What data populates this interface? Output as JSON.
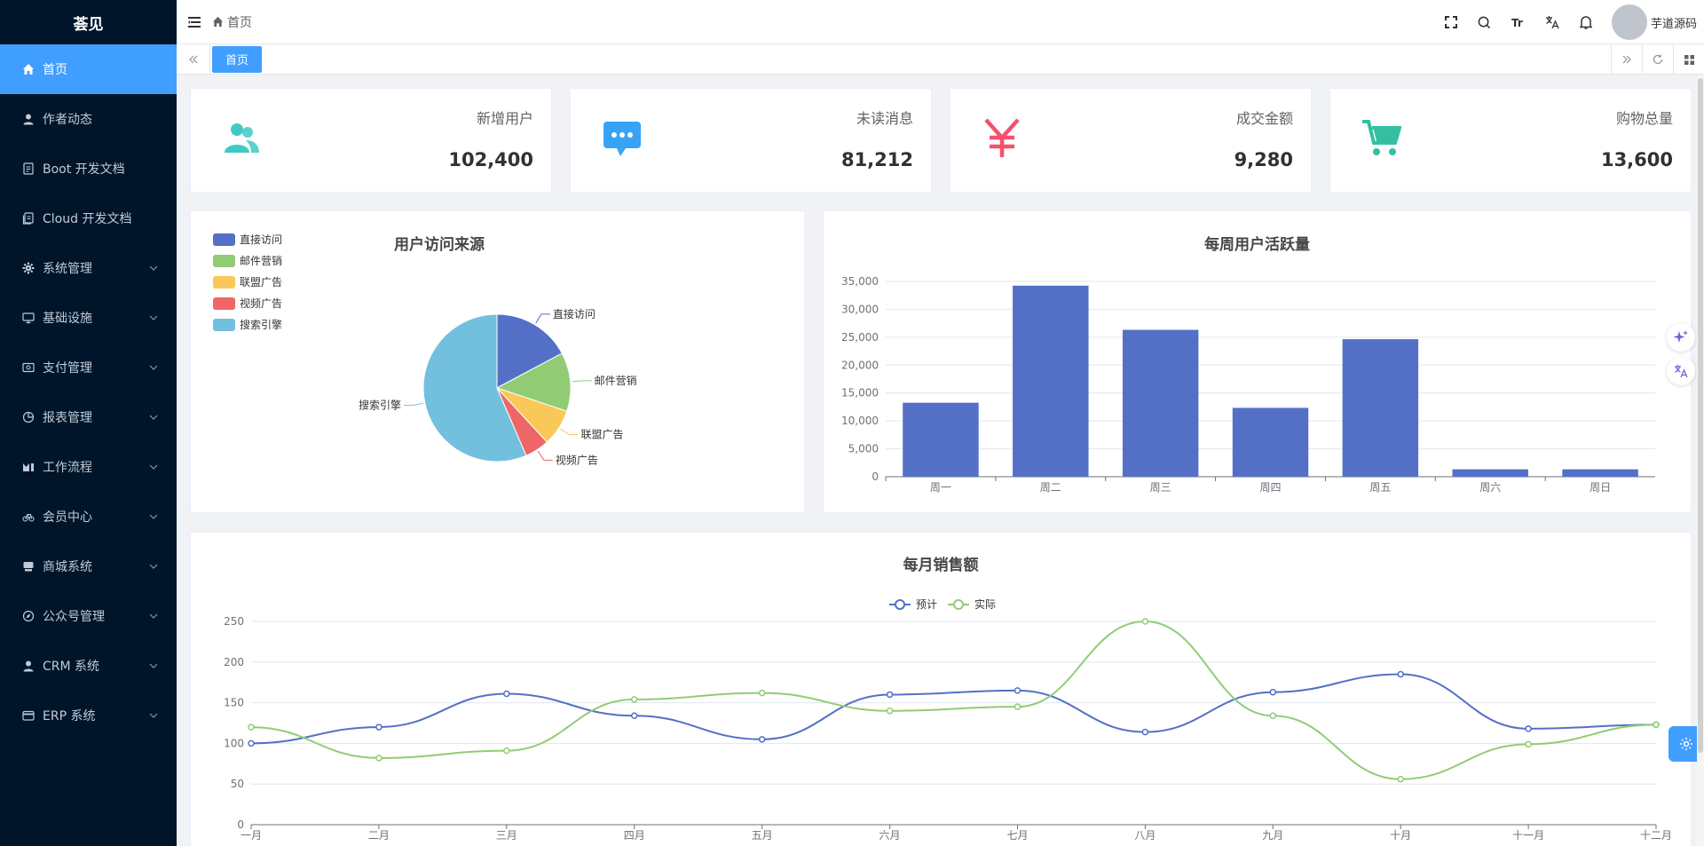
{
  "app": {
    "title": "荟见"
  },
  "sidebar": {
    "items": [
      {
        "label": "首页",
        "icon": "home-icon",
        "active": true
      },
      {
        "label": "作者动态",
        "icon": "user-icon"
      },
      {
        "label": "Boot 开发文档",
        "icon": "document-icon"
      },
      {
        "label": "Cloud 开发文档",
        "icon": "documents-icon"
      },
      {
        "label": "系统管理",
        "icon": "gear-icon"
      },
      {
        "label": "基础设施",
        "icon": "monitor-icon"
      },
      {
        "label": "支付管理",
        "icon": "payment-icon"
      },
      {
        "label": "报表管理",
        "icon": "pie-icon"
      },
      {
        "label": "工作流程",
        "icon": "workflow-icon"
      },
      {
        "label": "会员中心",
        "icon": "bicycle-icon"
      },
      {
        "label": "商城系统",
        "icon": "shop-icon"
      },
      {
        "label": "公众号管理",
        "icon": "compass-icon"
      },
      {
        "label": "CRM 系统",
        "icon": "user-icon"
      },
      {
        "label": "ERP 系统",
        "icon": "wallet-icon"
      }
    ]
  },
  "header": {
    "breadcrumb": "首页",
    "username": "芋道源码"
  },
  "tags": {
    "active": "首页"
  },
  "stats": [
    {
      "label": "新增用户",
      "value": "102,400",
      "icon": "users-icon",
      "color": "#40c9c6"
    },
    {
      "label": "未读消息",
      "value": "81,212",
      "icon": "message-icon",
      "color": "#36a3f7"
    },
    {
      "label": "成交金额",
      "value": "9,280",
      "icon": "yen-icon",
      "color": "#f4516c"
    },
    {
      "label": "购物总量",
      "value": "13,600",
      "icon": "cart-icon",
      "color": "#34bfa3"
    }
  ],
  "chart_data": [
    {
      "type": "pie",
      "title": "用户访问来源",
      "categories": [
        "直接访问",
        "邮件营销",
        "联盟广告",
        "视频广告",
        "搜索引擎"
      ],
      "values": [
        320,
        240,
        149,
        100,
        1050
      ],
      "colors": [
        "#5470c6",
        "#91cc75",
        "#fac858",
        "#ee6666",
        "#73c0de"
      ],
      "legend": "top-left"
    },
    {
      "type": "bar",
      "title": "每周用户活跃量",
      "categories": [
        "周一",
        "周二",
        "周三",
        "周四",
        "周五",
        "周六",
        "周日"
      ],
      "values": [
        13253,
        34235,
        26321,
        12340,
        24643,
        1322,
        1324
      ],
      "ylim": [
        0,
        35000
      ],
      "yticks": [
        "0",
        "5,000",
        "10,000",
        "15,000",
        "20,000",
        "25,000",
        "30,000",
        "35,000"
      ],
      "color": "#5470c6",
      "grid": true
    },
    {
      "type": "line",
      "title": "每月销售额",
      "categories": [
        "一月",
        "二月",
        "三月",
        "四月",
        "五月",
        "六月",
        "七月",
        "八月",
        "九月",
        "十月",
        "十一月",
        "十二月"
      ],
      "series": [
        {
          "name": "预计",
          "values": [
            100,
            120,
            161,
            134,
            105,
            160,
            165,
            114,
            163,
            185,
            118,
            123
          ],
          "color": "#5470c6"
        },
        {
          "name": "实际",
          "values": [
            120,
            82,
            91,
            154,
            162,
            140,
            145,
            250,
            134,
            56,
            99,
            123
          ],
          "color": "#91cc75"
        }
      ],
      "ylim": [
        0,
        250
      ],
      "yticks": [
        "0",
        "50",
        "100",
        "150",
        "200",
        "250"
      ],
      "legend": "top-center",
      "grid": true
    }
  ]
}
